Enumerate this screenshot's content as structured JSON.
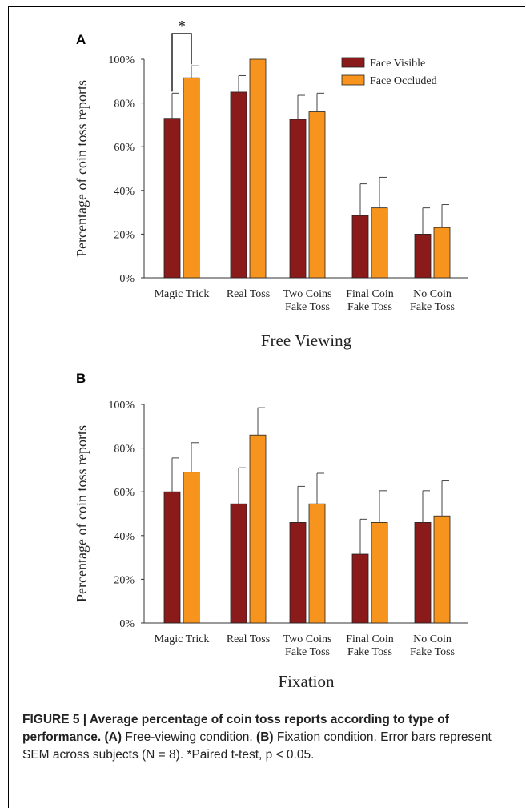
{
  "chart_data": [
    {
      "type": "bar",
      "panel_label": "A",
      "title": "Free Viewing",
      "ylabel": "Percentage of coin toss reports",
      "ylim": [
        0,
        100
      ],
      "yticks": [
        "0%",
        "20%",
        "40%",
        "60%",
        "80%",
        "100%"
      ],
      "categories": [
        [
          "Magic Trick"
        ],
        [
          "Real Toss"
        ],
        [
          "Two Coins",
          "Fake Toss"
        ],
        [
          "Final Coin",
          "Fake Toss"
        ],
        [
          "No Coin",
          "Fake Toss"
        ]
      ],
      "legend_placement": "top-right",
      "series": [
        {
          "name": "Face Visible",
          "color": "#8b1a1a",
          "values": [
            73,
            85,
            72.5,
            28.5,
            20
          ],
          "errors": [
            11.5,
            7.5,
            11,
            14.5,
            12
          ]
        },
        {
          "name": "Face Occluded",
          "color": "#f7941d",
          "values": [
            91.5,
            100,
            76,
            32,
            23
          ],
          "errors": [
            5.5,
            0,
            8.5,
            14,
            10.5
          ]
        }
      ],
      "annotation": {
        "text": "*",
        "between_series_in_category": 0
      }
    },
    {
      "type": "bar",
      "panel_label": "B",
      "title": "Fixation",
      "ylabel": "Percentage of coin toss reports",
      "ylim": [
        0,
        100
      ],
      "yticks": [
        "0%",
        "20%",
        "40%",
        "60%",
        "80%",
        "100%"
      ],
      "categories": [
        [
          "Magic Trick"
        ],
        [
          "Real Toss"
        ],
        [
          "Two Coins",
          "Fake Toss"
        ],
        [
          "Final Coin",
          "Fake Toss"
        ],
        [
          "No Coin",
          "Fake Toss"
        ]
      ],
      "series": [
        {
          "name": "Face Visible",
          "color": "#8b1a1a",
          "values": [
            60,
            54.5,
            46,
            31.5,
            46
          ],
          "errors": [
            15.5,
            16.5,
            16.5,
            16,
            14.5
          ]
        },
        {
          "name": "Face Occluded",
          "color": "#f7941d",
          "values": [
            69,
            86,
            54.5,
            46,
            49
          ],
          "errors": [
            13.5,
            12.5,
            14,
            14.5,
            16
          ]
        }
      ]
    }
  ],
  "caption": {
    "fig_label": "FIGURE 5 | Average percentage of coin toss reports according to type of performance.",
    "part_a_label": "(A)",
    "part_a_text": " Free-viewing condition. ",
    "part_b_label": "(B)",
    "part_b_text": " Fixation condition. Error bars represent SEM across subjects (N = 8). *Paired t-test, p < 0.05."
  }
}
